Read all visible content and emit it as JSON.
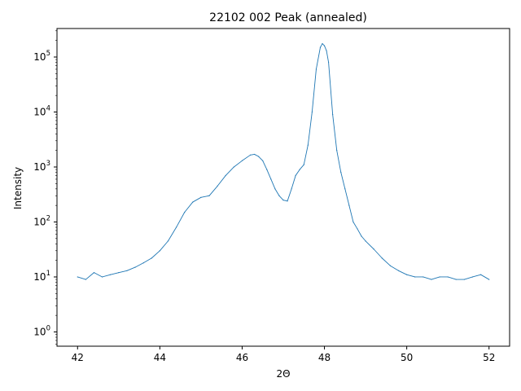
{
  "chart_data": {
    "type": "line",
    "title": "22102 002 Peak (annealed)",
    "xlabel": "2Θ",
    "ylabel": "Intensity",
    "xlim": [
      41.5,
      52.5
    ],
    "ylim": [
      0.55,
      330000
    ],
    "yscale": "log",
    "grid": false,
    "legend": "none",
    "x_ticks": [
      42,
      44,
      46,
      48,
      50,
      52
    ],
    "x_tick_labels": [
      "42",
      "44",
      "46",
      "48",
      "50",
      "52"
    ],
    "y_ticks": [
      1,
      10,
      100,
      1000,
      10000,
      100000
    ],
    "y_tick_labels": [
      {
        "base": "10",
        "exp": "0"
      },
      {
        "base": "10",
        "exp": "1"
      },
      {
        "base": "10",
        "exp": "2"
      },
      {
        "base": "10",
        "exp": "3"
      },
      {
        "base": "10",
        "exp": "4"
      },
      {
        "base": "10",
        "exp": "5"
      }
    ],
    "line_color": "#1f77b4",
    "series": [
      {
        "x": [
          42.0,
          42.2,
          42.4,
          42.6,
          42.8,
          43.0,
          43.2,
          43.4,
          43.6,
          43.8,
          44.0,
          44.2,
          44.4,
          44.6,
          44.8,
          45.0,
          45.2,
          45.4,
          45.6,
          45.8,
          46.0,
          46.2,
          46.3,
          46.4,
          46.5,
          46.6,
          46.7,
          46.8,
          46.9,
          47.0,
          47.1,
          47.2,
          47.3,
          47.4,
          47.5,
          47.6,
          47.7,
          47.8,
          47.9,
          47.95,
          48.0,
          48.05,
          48.1,
          48.2,
          48.3,
          48.4,
          48.5,
          48.6,
          48.7,
          48.8,
          48.9,
          49.0,
          49.2,
          49.4,
          49.6,
          49.8,
          50.0,
          50.2,
          50.4,
          50.6,
          50.8,
          51.0,
          51.2,
          51.4,
          51.6,
          51.8,
          52.0
        ],
        "y": [
          10,
          9,
          12,
          10,
          11,
          12,
          13,
          15,
          18,
          22,
          30,
          45,
          80,
          150,
          230,
          280,
          300,
          450,
          700,
          1000,
          1300,
          1650,
          1700,
          1550,
          1300,
          900,
          600,
          400,
          300,
          250,
          240,
          400,
          700,
          900,
          1100,
          2500,
          10000,
          60000,
          150000,
          175000,
          160000,
          130000,
          80000,
          9000,
          2000,
          800,
          400,
          200,
          100,
          75,
          55,
          45,
          32,
          22,
          16,
          13,
          11,
          10,
          10,
          9,
          10,
          10,
          9,
          9,
          10,
          11,
          9
        ]
      }
    ]
  }
}
